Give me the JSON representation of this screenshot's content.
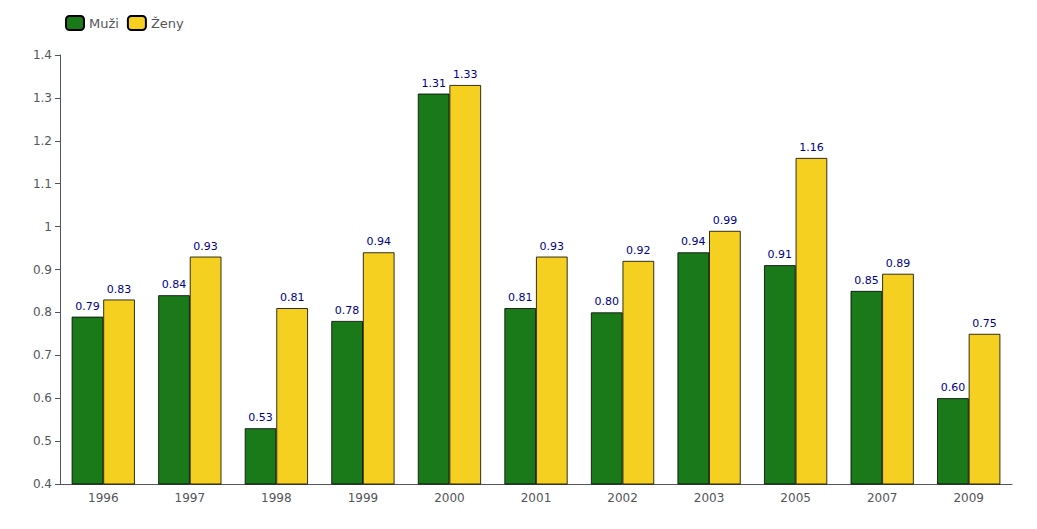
{
  "chart_data": {
    "type": "bar",
    "categories": [
      "1996",
      "1997",
      "1998",
      "1999",
      "2000",
      "2001",
      "2002",
      "2003",
      "2005",
      "2007",
      "2009"
    ],
    "series": [
      {
        "name": "Muži",
        "color": "#1a7a1a",
        "values": [
          0.79,
          0.84,
          0.53,
          0.78,
          1.31,
          0.81,
          0.8,
          0.94,
          0.91,
          0.85,
          0.6
        ],
        "value_labels": [
          "0.79",
          "0.84",
          "0.53",
          "0.78",
          "1.31",
          "0.81",
          "0.80",
          "0.94",
          "0.91",
          "0.85",
          "0.60"
        ]
      },
      {
        "name": "Ženy",
        "color": "#f5d020",
        "values": [
          0.83,
          0.93,
          0.81,
          0.94,
          1.33,
          0.93,
          0.92,
          0.99,
          1.16,
          0.89,
          0.75
        ],
        "value_labels": [
          "0.83",
          "0.93",
          "0.81",
          "0.94",
          "1.33",
          "0.93",
          "0.92",
          "0.99",
          "1.16",
          "0.89",
          "0.75"
        ]
      }
    ],
    "ylim": [
      0.4,
      1.4
    ],
    "yticks": [
      0.4,
      0.5,
      0.6,
      0.7,
      0.8,
      0.9,
      1,
      1.1,
      1.2,
      1.3,
      1.4
    ],
    "grid": false,
    "legend": "upper left",
    "data_labels": true
  }
}
